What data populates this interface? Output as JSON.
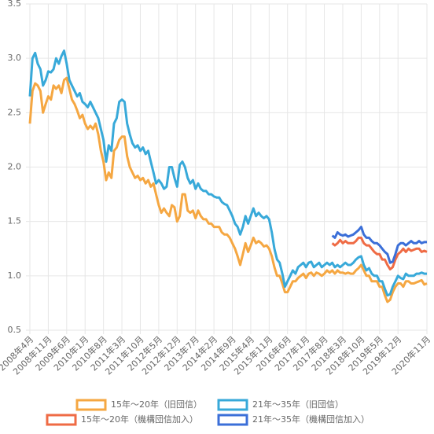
{
  "chart_data": {
    "type": "line",
    "grid": true,
    "legend": "bottom",
    "ylim": [
      0.5,
      3.5
    ],
    "yticks": [
      0.5,
      {
        "value": 1,
        "label": "1.0"
      },
      1.5,
      {
        "value": 2,
        "label": "2.0"
      },
      2.5,
      {
        "value": 3,
        "label": "3.0"
      },
      3.5
    ],
    "categories": [
      "2008年4月",
      null,
      null,
      null,
      null,
      null,
      null,
      "2008年11月",
      null,
      null,
      null,
      null,
      null,
      null,
      "2009年6月",
      null,
      null,
      null,
      null,
      null,
      null,
      "2010年1月",
      null,
      null,
      null,
      null,
      null,
      null,
      "2010年8月",
      null,
      null,
      null,
      null,
      null,
      null,
      "2011年3月",
      null,
      null,
      null,
      null,
      null,
      null,
      "2011年10月",
      null,
      null,
      null,
      null,
      null,
      null,
      "2012年5月",
      null,
      null,
      null,
      null,
      null,
      null,
      "2012年12月",
      null,
      null,
      null,
      null,
      null,
      null,
      "2013年7月",
      null,
      null,
      null,
      null,
      null,
      null,
      "2014年2月",
      null,
      null,
      null,
      null,
      null,
      null,
      "2014年9月",
      null,
      null,
      null,
      null,
      null,
      null,
      "2015年4月",
      null,
      null,
      null,
      null,
      null,
      null,
      "2015年11月",
      null,
      null,
      null,
      null,
      null,
      null,
      "2016年6月",
      null,
      null,
      null,
      null,
      null,
      null,
      "2017年1月",
      null,
      null,
      null,
      null,
      null,
      null,
      "2017年8月",
      null,
      null,
      null,
      null,
      null,
      null,
      "2018年3月",
      null,
      null,
      null,
      null,
      null,
      null,
      "2018年10月",
      null,
      null,
      null,
      null,
      null,
      null,
      "2019年5月",
      null,
      null,
      null,
      null,
      null,
      null,
      "2019年12月",
      null,
      null,
      null,
      null,
      null,
      null,
      null,
      null,
      null,
      null,
      "2020年11月"
    ],
    "series": [
      {
        "name": "15年～20年（旧団信）",
        "color": "#f5a742",
        "values": [
          2.4,
          2.7,
          2.77,
          2.75,
          2.7,
          2.5,
          2.58,
          2.65,
          2.62,
          2.75,
          2.72,
          2.75,
          2.68,
          2.8,
          2.82,
          2.72,
          2.62,
          2.58,
          2.52,
          2.45,
          2.48,
          2.4,
          2.35,
          2.38,
          2.35,
          2.4,
          2.3,
          2.15,
          2.05,
          1.88,
          1.95,
          1.9,
          2.15,
          2.18,
          2.25,
          2.28,
          2.28,
          2.1,
          2.0,
          1.95,
          1.9,
          1.92,
          1.88,
          1.9,
          1.85,
          1.88,
          1.82,
          1.85,
          1.75,
          1.65,
          1.58,
          1.62,
          1.58,
          1.55,
          1.65,
          1.63,
          1.5,
          1.55,
          1.75,
          1.75,
          1.6,
          1.58,
          1.6,
          1.53,
          1.6,
          1.55,
          1.52,
          1.52,
          1.48,
          1.48,
          1.45,
          1.45,
          1.45,
          1.4,
          1.38,
          1.38,
          1.35,
          1.3,
          1.25,
          1.18,
          1.1,
          1.2,
          1.3,
          1.22,
          1.28,
          1.35,
          1.3,
          1.32,
          1.3,
          1.27,
          1.28,
          1.25,
          1.18,
          1.08,
          1.0,
          1.0,
          0.93,
          0.85,
          0.85,
          0.9,
          0.95,
          0.95,
          0.98,
          1.0,
          1.02,
          0.98,
          1.02,
          1.03,
          1.0,
          1.03,
          1.02,
          1.0,
          1.02,
          1.05,
          1.03,
          1.05,
          1.02,
          1.05,
          1.03,
          1.03,
          1.02,
          1.03,
          1.02,
          1.02,
          1.05,
          1.07,
          1.1,
          1.05,
          1.0,
          1.0,
          0.95,
          0.95,
          0.95,
          0.9,
          0.9,
          0.82,
          0.76,
          0.78,
          0.85,
          0.9,
          0.93,
          0.93,
          0.9,
          0.95,
          0.95,
          0.93,
          0.93,
          0.94,
          0.95,
          0.96,
          0.92,
          0.93
        ]
      },
      {
        "name": "21年～35年（旧団信）",
        "color": "#38a9d9",
        "values": [
          2.65,
          3.0,
          3.05,
          2.95,
          2.9,
          2.75,
          2.8,
          2.88,
          2.87,
          2.9,
          3.0,
          2.95,
          3.02,
          3.07,
          2.95,
          2.8,
          2.75,
          2.7,
          2.65,
          2.68,
          2.6,
          2.58,
          2.55,
          2.6,
          2.55,
          2.5,
          2.45,
          2.35,
          2.25,
          2.05,
          2.2,
          2.15,
          2.4,
          2.45,
          2.6,
          2.62,
          2.6,
          2.4,
          2.3,
          2.22,
          2.18,
          2.2,
          2.15,
          2.18,
          2.12,
          2.15,
          2.05,
          1.95,
          1.85,
          1.88,
          1.85,
          1.8,
          1.82,
          2.0,
          2.0,
          1.9,
          1.82,
          2.02,
          2.05,
          2.0,
          1.9,
          1.85,
          1.88,
          1.8,
          1.85,
          1.8,
          1.78,
          1.78,
          1.75,
          1.75,
          1.73,
          1.72,
          1.72,
          1.68,
          1.66,
          1.65,
          1.6,
          1.55,
          1.48,
          1.45,
          1.38,
          1.45,
          1.55,
          1.48,
          1.55,
          1.62,
          1.55,
          1.58,
          1.55,
          1.53,
          1.55,
          1.52,
          1.4,
          1.25,
          1.15,
          1.12,
          1.02,
          0.9,
          0.95,
          1.0,
          1.05,
          1.02,
          1.08,
          1.1,
          1.12,
          1.08,
          1.12,
          1.13,
          1.08,
          1.1,
          1.12,
          1.08,
          1.1,
          1.12,
          1.1,
          1.12,
          1.08,
          1.1,
          1.08,
          1.1,
          1.12,
          1.1,
          1.1,
          1.12,
          1.15,
          1.17,
          1.18,
          1.1,
          1.05,
          1.07,
          1.02,
          1.0,
          1.0,
          0.95,
          0.95,
          0.88,
          0.82,
          0.83,
          0.9,
          0.95,
          1.0,
          0.98,
          0.97,
          1.02,
          1.0,
          1.0,
          1.0,
          1.02,
          1.02,
          1.03,
          1.02,
          1.02
        ]
      },
      {
        "name": "15年～20年（機構団信加入）",
        "color": "#ef6b45",
        "values": [
          null,
          null,
          null,
          null,
          null,
          null,
          null,
          null,
          null,
          null,
          null,
          null,
          null,
          null,
          null,
          null,
          null,
          null,
          null,
          null,
          null,
          null,
          null,
          null,
          null,
          null,
          null,
          null,
          null,
          null,
          null,
          null,
          null,
          null,
          null,
          null,
          null,
          null,
          null,
          null,
          null,
          null,
          null,
          null,
          null,
          null,
          null,
          null,
          null,
          null,
          null,
          null,
          null,
          null,
          null,
          null,
          null,
          null,
          null,
          null,
          null,
          null,
          null,
          null,
          null,
          null,
          null,
          null,
          null,
          null,
          null,
          null,
          null,
          null,
          null,
          null,
          null,
          null,
          null,
          null,
          null,
          null,
          null,
          null,
          null,
          null,
          null,
          null,
          null,
          null,
          null,
          null,
          null,
          null,
          null,
          null,
          null,
          null,
          null,
          null,
          null,
          null,
          null,
          null,
          null,
          null,
          null,
          null,
          null,
          null,
          null,
          null,
          null,
          null,
          null,
          1.3,
          1.28,
          1.3,
          1.33,
          1.3,
          1.32,
          1.3,
          1.3,
          1.3,
          1.32,
          1.35,
          1.35,
          1.3,
          1.28,
          1.28,
          1.25,
          1.22,
          1.2,
          1.2,
          1.15,
          1.15,
          1.1,
          1.06,
          1.08,
          1.15,
          1.2,
          1.22,
          1.25,
          1.22,
          1.25,
          1.23,
          1.24,
          1.25,
          1.25,
          1.22,
          1.23,
          1.22
        ]
      },
      {
        "name": "21年～35年（機構団信加入）",
        "color": "#3b6fd8",
        "values": [
          null,
          null,
          null,
          null,
          null,
          null,
          null,
          null,
          null,
          null,
          null,
          null,
          null,
          null,
          null,
          null,
          null,
          null,
          null,
          null,
          null,
          null,
          null,
          null,
          null,
          null,
          null,
          null,
          null,
          null,
          null,
          null,
          null,
          null,
          null,
          null,
          null,
          null,
          null,
          null,
          null,
          null,
          null,
          null,
          null,
          null,
          null,
          null,
          null,
          null,
          null,
          null,
          null,
          null,
          null,
          null,
          null,
          null,
          null,
          null,
          null,
          null,
          null,
          null,
          null,
          null,
          null,
          null,
          null,
          null,
          null,
          null,
          null,
          null,
          null,
          null,
          null,
          null,
          null,
          null,
          null,
          null,
          null,
          null,
          null,
          null,
          null,
          null,
          null,
          null,
          null,
          null,
          null,
          null,
          null,
          null,
          null,
          null,
          null,
          null,
          null,
          null,
          null,
          null,
          null,
          null,
          null,
          null,
          null,
          null,
          null,
          null,
          null,
          null,
          null,
          1.37,
          1.35,
          1.4,
          1.38,
          1.37,
          1.38,
          1.36,
          1.37,
          1.38,
          1.4,
          1.42,
          1.45,
          1.38,
          1.35,
          1.35,
          1.32,
          1.3,
          1.3,
          1.28,
          1.25,
          1.22,
          1.2,
          1.12,
          1.13,
          1.2,
          1.28,
          1.3,
          1.3,
          1.28,
          1.3,
          1.32,
          1.3,
          1.3,
          1.32,
          1.3,
          1.31,
          1.31
        ]
      }
    ]
  }
}
